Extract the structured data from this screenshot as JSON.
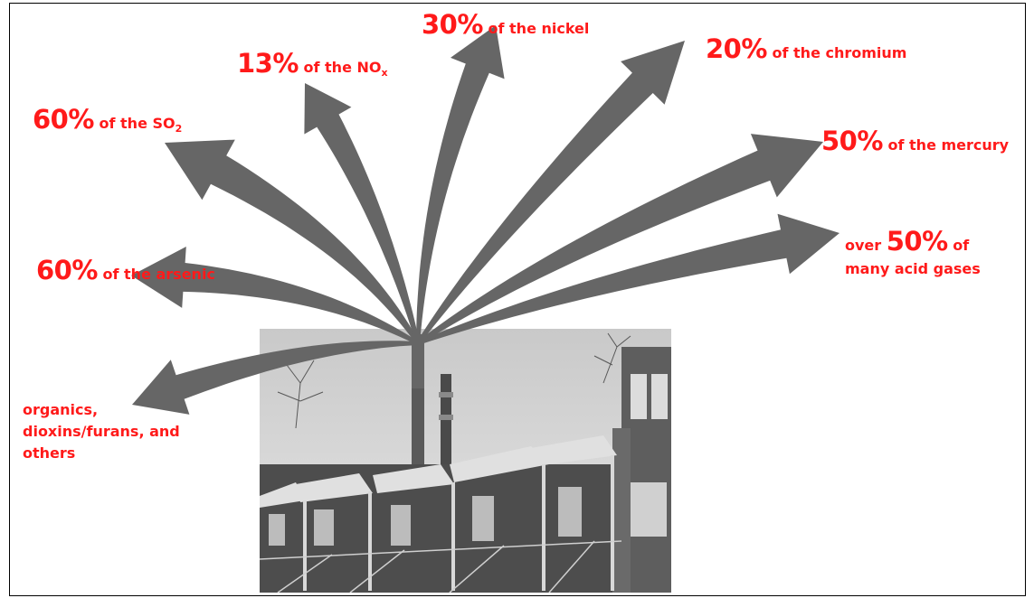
{
  "colors": {
    "label": "#ff1a1a",
    "arrow": "#666666",
    "frame": "#000000"
  },
  "labels": {
    "nox": {
      "pct": "13%",
      "text": "of the NO",
      "sub": "x"
    },
    "nickel": {
      "pct": "30%",
      "text": "of the nickel"
    },
    "chromium": {
      "pct": "20%",
      "text": "of the chromium"
    },
    "so2": {
      "pct": "60%",
      "text": "of the SO",
      "sub": "2"
    },
    "mercury": {
      "pct": "50%",
      "text": "of the mercury"
    },
    "arsenic": {
      "pct": "60%",
      "text": "of the arsenic"
    },
    "acid": {
      "pre": "over",
      "pct": "50%",
      "text": "of",
      "line2": "many acid gases"
    },
    "organics": {
      "lines": [
        "organics,",
        "dioxins/furans, and",
        "others"
      ]
    }
  },
  "photo": {
    "subject": "row-houses-with-smokestack-photo"
  }
}
